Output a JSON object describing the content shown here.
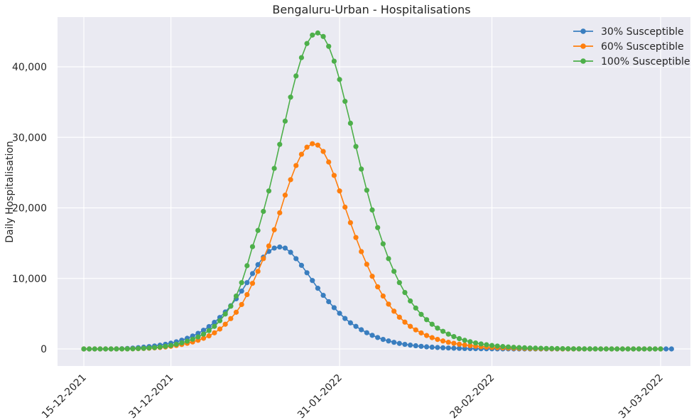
{
  "chart_data": {
    "type": "line",
    "title": "Bengaluru-Urban - Hospitalisations",
    "xlabel": "",
    "ylabel": "Daily Hospitalisation",
    "x_start": "15-12-2021",
    "x_end": "31-03-2022",
    "x_tick_labels": [
      "15-12-2021",
      "31-12-2021",
      "31-01-2022",
      "28-02-2022",
      "31-03-2022"
    ],
    "y_ticks": [
      0,
      10000,
      20000,
      30000,
      40000
    ],
    "y_tick_labels": [
      "0",
      "10,000",
      "20,000",
      "30,000",
      "40,000"
    ],
    "ylim": [
      -2300,
      47000
    ],
    "grid": true,
    "legend_position": "top-right",
    "series": [
      {
        "name": "30% Susceptible",
        "color": "#3a7ebf",
        "values": [
          0,
          0,
          0,
          0,
          0,
          0,
          10,
          30,
          70,
          120,
          180,
          250,
          330,
          420,
          530,
          660,
          820,
          1010,
          1240,
          1510,
          1830,
          2210,
          2650,
          3170,
          3770,
          4460,
          5240,
          6120,
          7110,
          8200,
          9400,
          10680,
          11950,
          13010,
          13830,
          14300,
          14450,
          14300,
          13700,
          12800,
          11850,
          10800,
          9700,
          8600,
          7600,
          6700,
          5850,
          5050,
          4320,
          3700,
          3200,
          2720,
          2300,
          1930,
          1620,
          1350,
          1130,
          940,
          780,
          650,
          540,
          450,
          370,
          300,
          250,
          200,
          160,
          130,
          100,
          80,
          60,
          50,
          40,
          30,
          20,
          20,
          10,
          10,
          10,
          0,
          0,
          0,
          0,
          0,
          0,
          0,
          0,
          0,
          0,
          0,
          0,
          0,
          0,
          0,
          0,
          0,
          0,
          0,
          0,
          0,
          0,
          0,
          0,
          0,
          0,
          0,
          0,
          0,
          0
        ]
      },
      {
        "name": "60% Susceptible",
        "color": "#ff7f0e",
        "values": [
          0,
          0,
          0,
          0,
          0,
          0,
          0,
          0,
          10,
          20,
          40,
          70,
          100,
          150,
          200,
          280,
          380,
          500,
          640,
          800,
          990,
          1230,
          1510,
          1850,
          2280,
          2820,
          3500,
          4300,
          5200,
          6300,
          7700,
          9300,
          11000,
          12800,
          14600,
          16900,
          19300,
          21800,
          24000,
          26000,
          27600,
          28600,
          29100,
          28900,
          28000,
          26500,
          24600,
          22400,
          20100,
          17900,
          15800,
          13800,
          12000,
          10300,
          8800,
          7500,
          6350,
          5350,
          4500,
          3800,
          3200,
          2700,
          2270,
          1900,
          1600,
          1350,
          1130,
          950,
          800,
          670,
          560,
          470,
          390,
          320,
          270,
          220,
          180,
          150,
          120,
          100,
          80,
          70,
          50,
          40,
          30,
          30,
          20,
          20,
          10,
          10,
          10,
          10,
          0,
          0,
          0,
          0,
          0,
          0,
          0,
          0,
          0,
          0,
          0,
          0,
          0,
          0,
          0
        ]
      },
      {
        "name": "100% Susceptible",
        "color": "#4daf4a",
        "values": [
          0,
          0,
          0,
          0,
          0,
          0,
          0,
          0,
          10,
          20,
          50,
          80,
          130,
          190,
          270,
          370,
          500,
          660,
          860,
          1100,
          1380,
          1700,
          2100,
          2600,
          3200,
          4000,
          4950,
          6050,
          7500,
          9400,
          11800,
          14500,
          16800,
          19500,
          22400,
          25600,
          29000,
          32300,
          35700,
          38700,
          41300,
          43300,
          44500,
          44800,
          44300,
          42900,
          40800,
          38200,
          35100,
          32000,
          28700,
          25500,
          22500,
          19700,
          17200,
          14900,
          12800,
          11000,
          9400,
          8000,
          6800,
          5800,
          4900,
          4150,
          3500,
          2950,
          2500,
          2100,
          1750,
          1460,
          1220,
          1020,
          850,
          710,
          590,
          490,
          410,
          340,
          280,
          230,
          190,
          160,
          130,
          110,
          90,
          70,
          60,
          50,
          40,
          30,
          20,
          20,
          10,
          10,
          10,
          0,
          0,
          0,
          0,
          0,
          0,
          0,
          0,
          0,
          0,
          0,
          0
        ]
      }
    ]
  }
}
